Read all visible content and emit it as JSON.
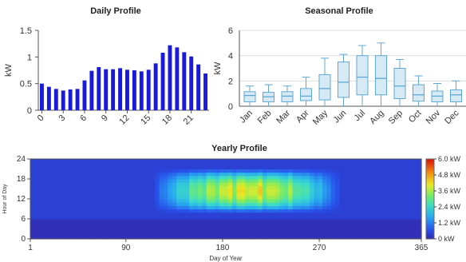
{
  "colors": {
    "bar": "#1a1adc",
    "box_fill": "#d6eaf5",
    "box_stroke": "#5fa8d3",
    "axis": "#555555",
    "heat_low": "#3030b8",
    "heat_high": "#d40000"
  },
  "chart_data": [
    {
      "id": "daily",
      "type": "bar",
      "title": "Daily Profile",
      "ylabel": "kW",
      "xlabel": "",
      "categories": [
        0,
        1,
        2,
        3,
        4,
        5,
        6,
        7,
        8,
        9,
        10,
        11,
        12,
        13,
        14,
        15,
        16,
        17,
        18,
        19,
        20,
        21,
        22,
        23
      ],
      "x_tick_labels": [
        "0",
        "3",
        "6",
        "9",
        "12",
        "15",
        "18",
        "21"
      ],
      "x_tick_values": [
        0,
        3,
        6,
        9,
        12,
        15,
        18,
        21
      ],
      "values": [
        0.5,
        0.44,
        0.4,
        0.37,
        0.39,
        0.4,
        0.56,
        0.74,
        0.81,
        0.77,
        0.77,
        0.79,
        0.76,
        0.75,
        0.73,
        0.76,
        0.88,
        1.08,
        1.22,
        1.18,
        1.09,
        1.01,
        0.86,
        0.69
      ],
      "ylim": [
        0,
        1.5
      ],
      "y_ticks": [
        "0",
        "0.5",
        "1",
        "1.5"
      ],
      "y_tick_values": [
        0,
        0.5,
        1,
        1.5
      ],
      "grid": false
    },
    {
      "id": "seasonal",
      "type": "box",
      "title": "Seasonal Profile",
      "ylabel": "kW",
      "xlabel": "",
      "categories": [
        "Jan",
        "Feb",
        "Mar",
        "Apr",
        "May",
        "Jun",
        "Jul",
        "Aug",
        "Sep",
        "Oct",
        "Nov",
        "Dec"
      ],
      "boxes": [
        {
          "min": 0.0,
          "q1": 0.35,
          "median": 0.85,
          "q3": 1.15,
          "max": 1.6
        },
        {
          "min": 0.0,
          "q1": 0.35,
          "median": 0.75,
          "q3": 1.1,
          "max": 1.7
        },
        {
          "min": 0.0,
          "q1": 0.35,
          "median": 0.8,
          "q3": 1.15,
          "max": 1.6
        },
        {
          "min": 0.0,
          "q1": 0.45,
          "median": 0.8,
          "q3": 1.4,
          "max": 2.3
        },
        {
          "min": 0.0,
          "q1": 0.5,
          "median": 1.4,
          "q3": 2.5,
          "max": 3.8
        },
        {
          "min": 0.0,
          "q1": 0.7,
          "median": 1.9,
          "q3": 3.5,
          "max": 4.1
        },
        {
          "min": 0.0,
          "q1": 0.9,
          "median": 2.3,
          "q3": 4.0,
          "max": 4.8
        },
        {
          "min": 0.0,
          "q1": 0.9,
          "median": 2.2,
          "q3": 4.0,
          "max": 5.0
        },
        {
          "min": 0.0,
          "q1": 0.6,
          "median": 1.6,
          "q3": 3.0,
          "max": 3.7
        },
        {
          "min": 0.0,
          "q1": 0.4,
          "median": 0.9,
          "q3": 1.7,
          "max": 2.4
        },
        {
          "min": 0.0,
          "q1": 0.35,
          "median": 0.8,
          "q3": 1.2,
          "max": 1.8
        },
        {
          "min": 0.0,
          "q1": 0.35,
          "median": 0.9,
          "q3": 1.3,
          "max": 2.0
        }
      ],
      "ylim": [
        0,
        6
      ],
      "y_ticks": [
        "0",
        "2",
        "4",
        "6"
      ],
      "y_tick_values": [
        0,
        2,
        4,
        6
      ],
      "grid": true
    },
    {
      "id": "yearly",
      "type": "heatmap",
      "title": "Yearly Profile",
      "xlabel": "Day of Year",
      "ylabel": "Hour of Day",
      "xlim": [
        1,
        365
      ],
      "ylim": [
        0,
        24
      ],
      "x_ticks": [
        "1",
        "90",
        "180",
        "270",
        "365"
      ],
      "x_tick_values": [
        1,
        90,
        180,
        270,
        365
      ],
      "y_ticks": [
        "0",
        "6",
        "12",
        "18",
        "24"
      ],
      "y_tick_values": [
        0,
        6,
        12,
        18,
        24
      ],
      "colorbar_ticks": [
        "0 kW",
        "1.2 kW",
        "2.4 kW",
        "3.6 kW",
        "4.8 kW",
        "6.0 kW"
      ],
      "colorbar_values": [
        0,
        1.2,
        2.4,
        3.6,
        4.8,
        6.0
      ],
      "value_range": [
        0,
        6.0
      ],
      "peak_day_start": 115,
      "peak_day_end": 290,
      "peak_hour_start": 8,
      "peak_hour_end": 21,
      "peak_value": 4.2
    }
  ]
}
